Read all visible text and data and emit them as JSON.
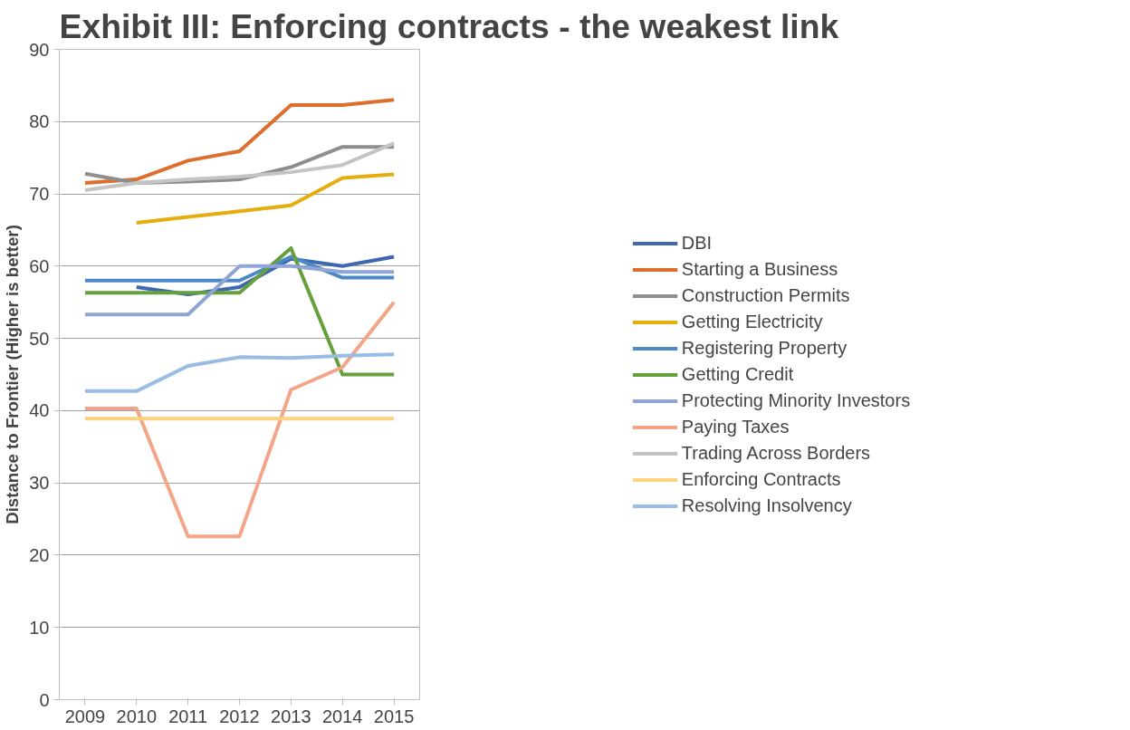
{
  "chart_data": {
    "type": "line",
    "title": "Exhibit III: Enforcing contracts -  the weakest link",
    "ylabel": "Distance to Frontier (Higher is better)",
    "categories": [
      "2009",
      "2010",
      "2011",
      "2012",
      "2013",
      "2014",
      "2015"
    ],
    "ylim": [
      0,
      90
    ],
    "yticks": [
      0,
      10,
      20,
      30,
      40,
      50,
      60,
      70,
      80,
      90
    ],
    "grid": "y",
    "legend": "right",
    "marker": "none",
    "line_style": "solid",
    "series": [
      {
        "name": "DBI",
        "color": "#4068b0",
        "values": [
          null,
          57.1,
          56.1,
          57.1,
          61.0,
          60.0,
          61.3
        ]
      },
      {
        "name": "Starting a Business",
        "color": "#dd6e2b",
        "values": [
          71.5,
          72.0,
          74.6,
          75.9,
          82.3,
          82.3,
          83.0
        ]
      },
      {
        "name": "Construction Permits",
        "color": "#8e8e8e",
        "values": [
          72.8,
          71.5,
          71.7,
          72.0,
          73.7,
          76.5,
          76.5
        ]
      },
      {
        "name": "Getting Electricity",
        "color": "#e6ad0e",
        "values": [
          null,
          66.0,
          66.8,
          67.6,
          68.4,
          72.2,
          72.7
        ]
      },
      {
        "name": "Registering Property",
        "color": "#4c89c8",
        "values": [
          58.0,
          58.0,
          58.0,
          58.0,
          61.3,
          58.4,
          58.4
        ]
      },
      {
        "name": "Getting Credit",
        "color": "#66a03c",
        "values": [
          56.3,
          56.3,
          56.3,
          56.3,
          62.5,
          45.0,
          45.0
        ]
      },
      {
        "name": "Protecting Minority Investors",
        "color": "#8fa5d8",
        "values": [
          53.3,
          53.3,
          53.3,
          60.0,
          60.0,
          59.2,
          59.2
        ]
      },
      {
        "name": "Paying Taxes",
        "color": "#f2a687",
        "values": [
          40.3,
          40.3,
          22.6,
          22.6,
          42.9,
          46.0,
          55.0
        ]
      },
      {
        "name": "Trading Across Borders",
        "color": "#c4c4c4",
        "values": [
          70.5,
          71.5,
          72.0,
          72.4,
          73.0,
          74.0,
          77.0
        ]
      },
      {
        "name": "Enforcing Contracts",
        "color": "#fdd27f",
        "values": [
          38.9,
          38.9,
          38.9,
          38.9,
          38.9,
          38.9,
          38.9
        ]
      },
      {
        "name": "Resolving Insolvency",
        "color": "#98bce4",
        "values": [
          42.7,
          42.7,
          46.2,
          47.4,
          47.3,
          47.6,
          47.8
        ]
      }
    ]
  }
}
